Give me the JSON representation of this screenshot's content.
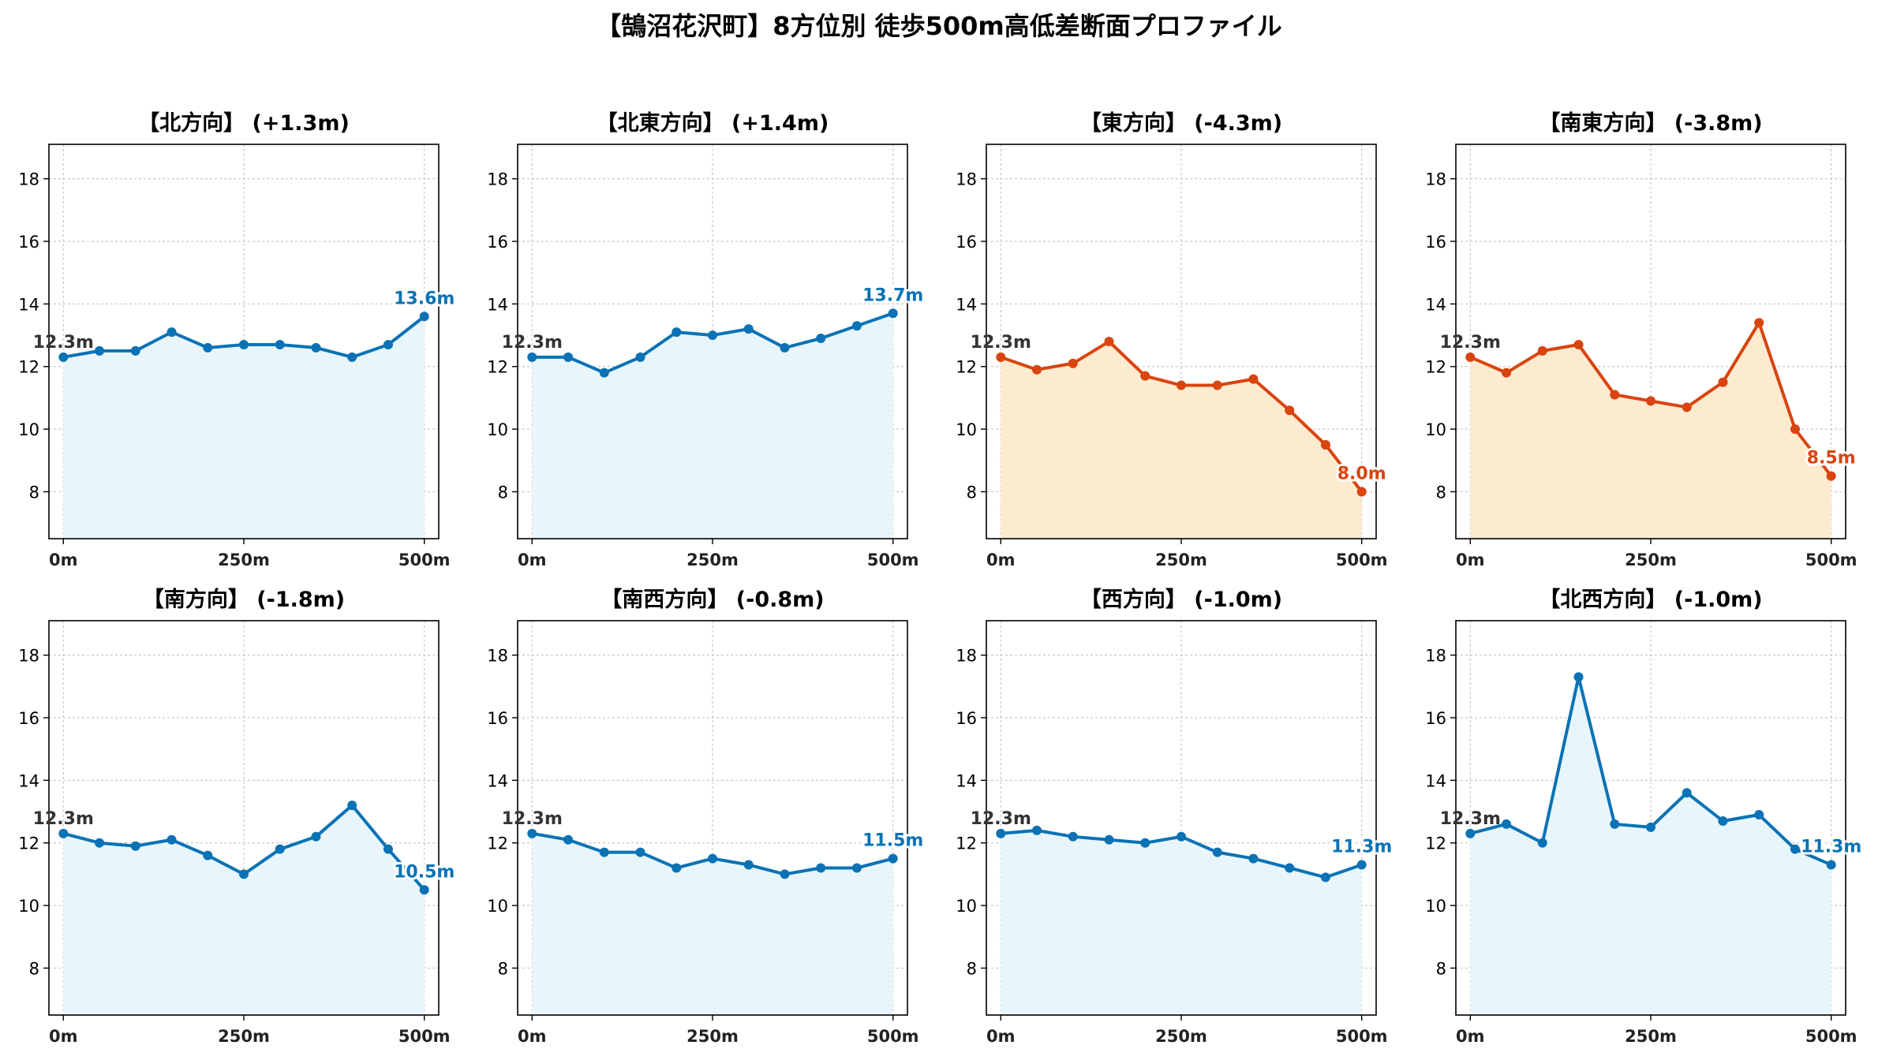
{
  "figure_title": "【鵠沼花沢町】8方位別 徒歩500m高低差断面プロファイル",
  "colors": {
    "rise_line": "#0a72b5",
    "rise_fill": "#e8f6fb",
    "fall_line": "#d9440f",
    "fall_fill": "#fdebd0",
    "start_label": "#333333",
    "grid": "#c8c8c8",
    "axis": "#000000"
  },
  "chart_data": [
    {
      "type": "area",
      "title": "【北方向】 (+1.3m)",
      "trend": "rise",
      "x": [
        0,
        50,
        100,
        150,
        200,
        250,
        300,
        350,
        400,
        450,
        500
      ],
      "y": [
        12.3,
        12.5,
        12.5,
        13.1,
        12.6,
        12.7,
        12.7,
        12.6,
        12.3,
        12.7,
        13.6
      ],
      "start_label": "12.3m",
      "end_label": "13.6m",
      "xticks": [
        0,
        250,
        500
      ],
      "xtick_labels": [
        "0m",
        "250m",
        "500m"
      ],
      "yticks": [
        8,
        10,
        12,
        14,
        16,
        18
      ],
      "xlim": [
        -20,
        520
      ],
      "ylim": [
        6.5,
        19.1
      ],
      "grid": true
    },
    {
      "type": "area",
      "title": "【北東方向】 (+1.4m)",
      "trend": "rise",
      "x": [
        0,
        50,
        100,
        150,
        200,
        250,
        300,
        350,
        400,
        450,
        500
      ],
      "y": [
        12.3,
        12.3,
        11.8,
        12.3,
        13.1,
        13.0,
        13.2,
        12.6,
        12.9,
        13.3,
        13.7
      ],
      "start_label": "12.3m",
      "end_label": "13.7m",
      "xticks": [
        0,
        250,
        500
      ],
      "xtick_labels": [
        "0m",
        "250m",
        "500m"
      ],
      "yticks": [
        8,
        10,
        12,
        14,
        16,
        18
      ],
      "xlim": [
        -20,
        520
      ],
      "ylim": [
        6.5,
        19.1
      ],
      "grid": true
    },
    {
      "type": "area",
      "title": "【東方向】 (-4.3m)",
      "trend": "fall",
      "x": [
        0,
        50,
        100,
        150,
        200,
        250,
        300,
        350,
        400,
        450,
        500
      ],
      "y": [
        12.3,
        11.9,
        12.1,
        12.8,
        11.7,
        11.4,
        11.4,
        11.6,
        10.6,
        9.5,
        8.0
      ],
      "start_label": "12.3m",
      "end_label": "8.0m",
      "xticks": [
        0,
        250,
        500
      ],
      "xtick_labels": [
        "0m",
        "250m",
        "500m"
      ],
      "yticks": [
        8,
        10,
        12,
        14,
        16,
        18
      ],
      "xlim": [
        -20,
        520
      ],
      "ylim": [
        6.5,
        19.1
      ],
      "grid": true
    },
    {
      "type": "area",
      "title": "【南東方向】 (-3.8m)",
      "trend": "fall",
      "x": [
        0,
        50,
        100,
        150,
        200,
        250,
        300,
        350,
        400,
        450,
        500
      ],
      "y": [
        12.3,
        11.8,
        12.5,
        12.7,
        11.1,
        10.9,
        10.7,
        11.5,
        13.4,
        10.0,
        8.5
      ],
      "start_label": "12.3m",
      "end_label": "8.5m",
      "xticks": [
        0,
        250,
        500
      ],
      "xtick_labels": [
        "0m",
        "250m",
        "500m"
      ],
      "yticks": [
        8,
        10,
        12,
        14,
        16,
        18
      ],
      "xlim": [
        -20,
        520
      ],
      "ylim": [
        6.5,
        19.1
      ],
      "grid": true
    },
    {
      "type": "area",
      "title": "【南方向】 (-1.8m)",
      "trend": "rise",
      "x": [
        0,
        50,
        100,
        150,
        200,
        250,
        300,
        350,
        400,
        450,
        500
      ],
      "y": [
        12.3,
        12.0,
        11.9,
        12.1,
        11.6,
        11.0,
        11.8,
        12.2,
        13.2,
        11.8,
        10.5
      ],
      "start_label": "12.3m",
      "end_label": "10.5m",
      "xticks": [
        0,
        250,
        500
      ],
      "xtick_labels": [
        "0m",
        "250m",
        "500m"
      ],
      "yticks": [
        8,
        10,
        12,
        14,
        16,
        18
      ],
      "xlim": [
        -20,
        520
      ],
      "ylim": [
        6.5,
        19.1
      ],
      "grid": true
    },
    {
      "type": "area",
      "title": "【南西方向】 (-0.8m)",
      "trend": "rise",
      "x": [
        0,
        50,
        100,
        150,
        200,
        250,
        300,
        350,
        400,
        450,
        500
      ],
      "y": [
        12.3,
        12.1,
        11.7,
        11.7,
        11.2,
        11.5,
        11.3,
        11.0,
        11.2,
        11.2,
        11.5
      ],
      "start_label": "12.3m",
      "end_label": "11.5m",
      "xticks": [
        0,
        250,
        500
      ],
      "xtick_labels": [
        "0m",
        "250m",
        "500m"
      ],
      "yticks": [
        8,
        10,
        12,
        14,
        16,
        18
      ],
      "xlim": [
        -20,
        520
      ],
      "ylim": [
        6.5,
        19.1
      ],
      "grid": true
    },
    {
      "type": "area",
      "title": "【西方向】 (-1.0m)",
      "trend": "rise",
      "x": [
        0,
        50,
        100,
        150,
        200,
        250,
        300,
        350,
        400,
        450,
        500
      ],
      "y": [
        12.3,
        12.4,
        12.2,
        12.1,
        12.0,
        12.2,
        11.7,
        11.5,
        11.2,
        10.9,
        11.3
      ],
      "start_label": "12.3m",
      "end_label": "11.3m",
      "xticks": [
        0,
        250,
        500
      ],
      "xtick_labels": [
        "0m",
        "250m",
        "500m"
      ],
      "yticks": [
        8,
        10,
        12,
        14,
        16,
        18
      ],
      "xlim": [
        -20,
        520
      ],
      "ylim": [
        6.5,
        19.1
      ],
      "grid": true
    },
    {
      "type": "area",
      "title": "【北西方向】 (-1.0m)",
      "trend": "rise",
      "x": [
        0,
        50,
        100,
        150,
        200,
        250,
        300,
        350,
        400,
        450,
        500
      ],
      "y": [
        12.3,
        12.6,
        12.0,
        17.3,
        12.6,
        12.5,
        13.6,
        12.7,
        12.9,
        11.8,
        11.3
      ],
      "start_label": "12.3m",
      "end_label": "11.3m",
      "xticks": [
        0,
        250,
        500
      ],
      "xtick_labels": [
        "0m",
        "250m",
        "500m"
      ],
      "yticks": [
        8,
        10,
        12,
        14,
        16,
        18
      ],
      "xlim": [
        -20,
        520
      ],
      "ylim": [
        6.5,
        19.1
      ],
      "grid": true
    }
  ]
}
